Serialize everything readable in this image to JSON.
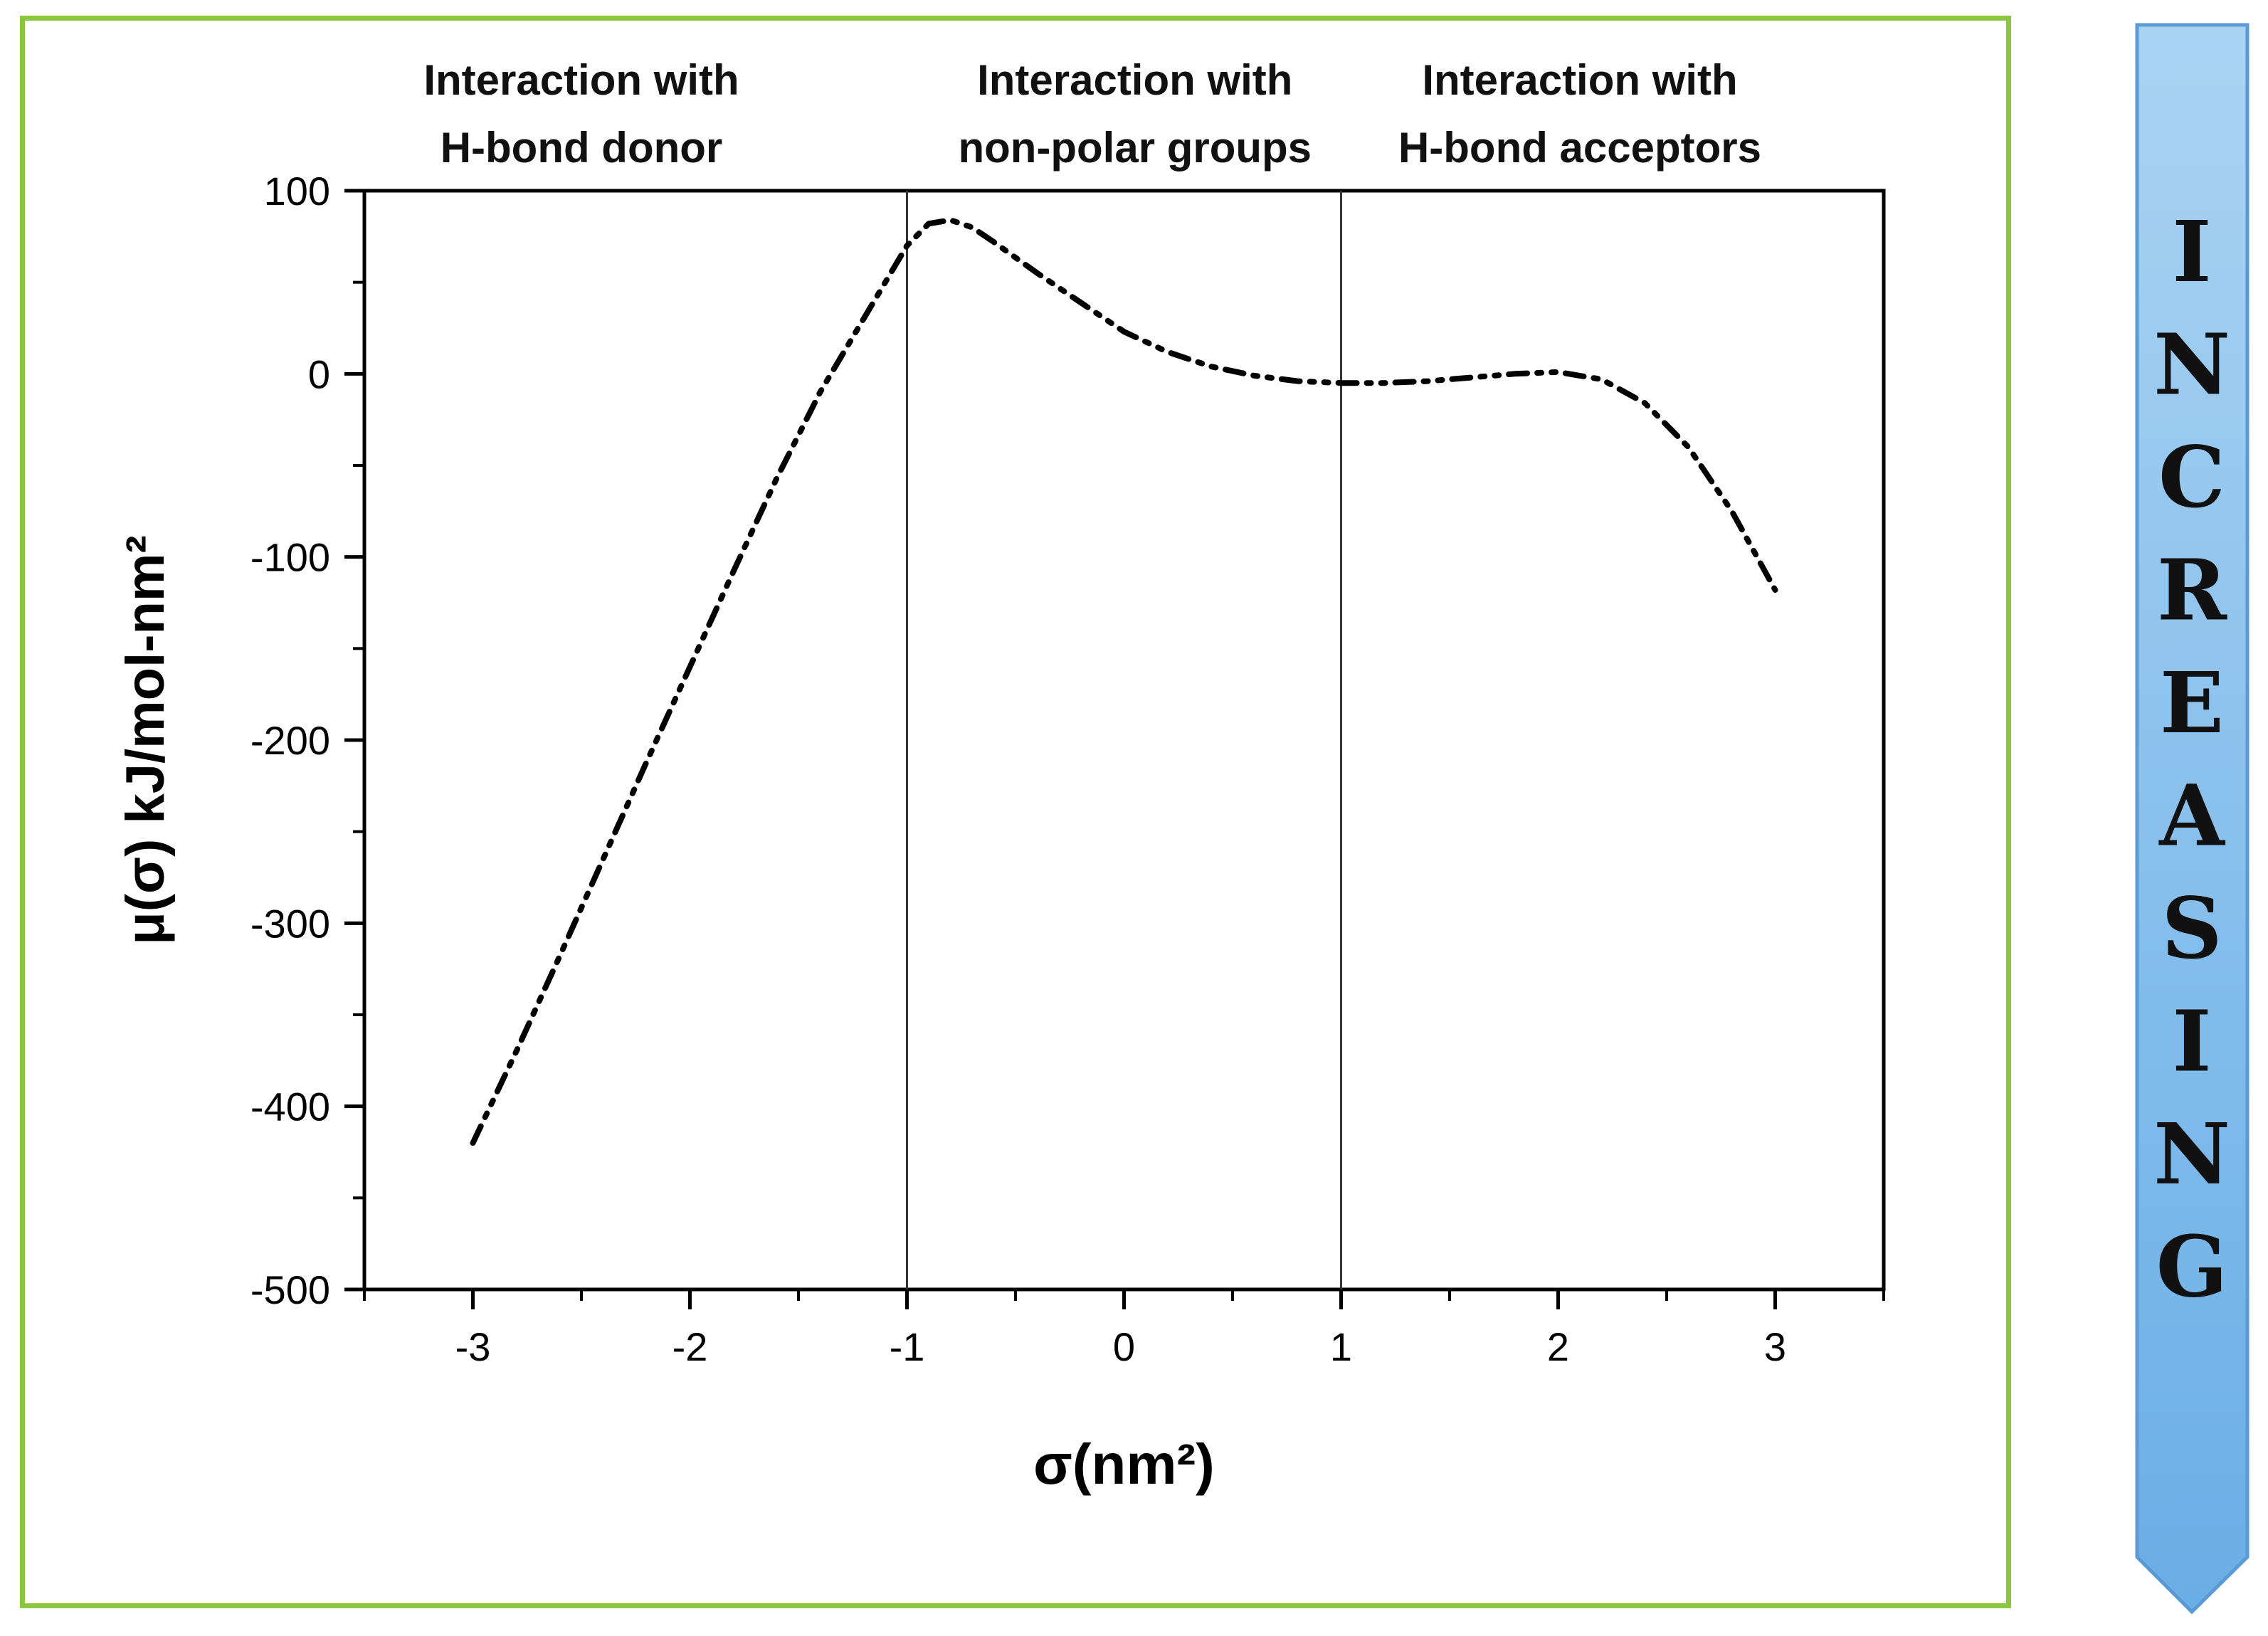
{
  "chart_data": {
    "type": "line",
    "xlabel": "σ(nm²)",
    "ylabel": "μ(σ) kJ/mol-nm²",
    "xlim": [
      -3.5,
      3.5
    ],
    "ylim": [
      -500,
      100
    ],
    "x_ticks": [
      -3,
      -2,
      -1,
      0,
      1,
      2,
      3
    ],
    "y_ticks": [
      100,
      0,
      -100,
      -200,
      -300,
      -400,
      -500
    ],
    "grid": false,
    "vertical_lines": [
      -1,
      1
    ],
    "region_labels": [
      {
        "line1": "Interaction with",
        "line2": "H-bond donor",
        "x": -2.5
      },
      {
        "line1": "Interaction with",
        "line2": "non-polar groups",
        "x": 0.05
      },
      {
        "line1": "Interaction with",
        "line2": "H-bond acceptors",
        "x": 2.1
      }
    ],
    "series": [
      {
        "line_style": "dash-dot-dot",
        "color": "#000000",
        "x": [
          -3.0,
          -2.8,
          -2.6,
          -2.4,
          -2.2,
          -2.0,
          -1.8,
          -1.6,
          -1.4,
          -1.2,
          -1.0,
          -0.9,
          -0.8,
          -0.7,
          -0.6,
          -0.4,
          -0.2,
          0.0,
          0.2,
          0.4,
          0.6,
          0.8,
          1.0,
          1.2,
          1.4,
          1.6,
          1.8,
          2.0,
          2.2,
          2.4,
          2.6,
          2.8,
          3.0
        ],
        "y": [
          -420,
          -370,
          -318,
          -265,
          -212,
          -160,
          -108,
          -57,
          -10,
          30,
          70,
          82,
          84,
          80,
          72,
          55,
          39,
          23,
          12,
          4,
          -1,
          -4,
          -5,
          -5,
          -4,
          -2,
          0,
          1,
          -3,
          -16,
          -40,
          -75,
          -118
        ]
      }
    ]
  },
  "banner": {
    "letters": [
      "I",
      "N",
      "C",
      "R",
      "E",
      "A",
      "S",
      "I",
      "N",
      "G"
    ],
    "fill_top": "#a9d3f3",
    "fill_bottom": "#6aaee6"
  }
}
